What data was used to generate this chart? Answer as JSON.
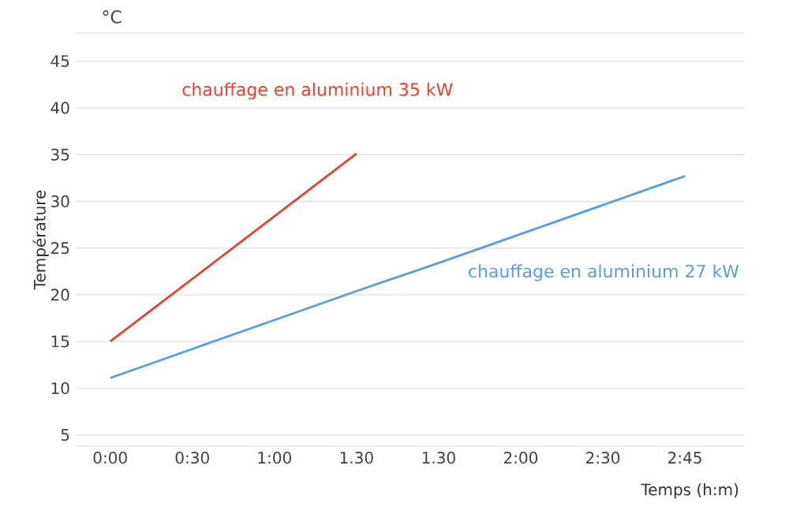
{
  "chart_data": {
    "type": "line",
    "ylabel": "Température",
    "xlabel": "Temps (h:m)",
    "annotations": [
      "°C"
    ],
    "ylim": [
      3.8,
      48
    ],
    "categories": [
      "0:00",
      "0:30",
      "1:00",
      "1.30",
      "1.30",
      "2:00",
      "2:30",
      "2:45"
    ],
    "yticks": [
      5,
      10,
      15,
      20,
      25,
      30,
      35,
      40,
      45
    ],
    "grid": "y",
    "marker": "none",
    "line_style": "solid",
    "legend": false,
    "series": [
      {
        "name": "chauffage en aluminium 35 kW",
        "color": "#e8402f",
        "values": [
          15,
          21.7,
          28.4,
          35.1,
          null,
          null,
          null,
          null
        ]
      },
      {
        "name": "chauffage en aluminium 27 kW",
        "color": "#5b9be0",
        "values": [
          11.1,
          14.2,
          17.3,
          20.4,
          23.4,
          26.5,
          29.6,
          32.7
        ]
      }
    ]
  }
}
